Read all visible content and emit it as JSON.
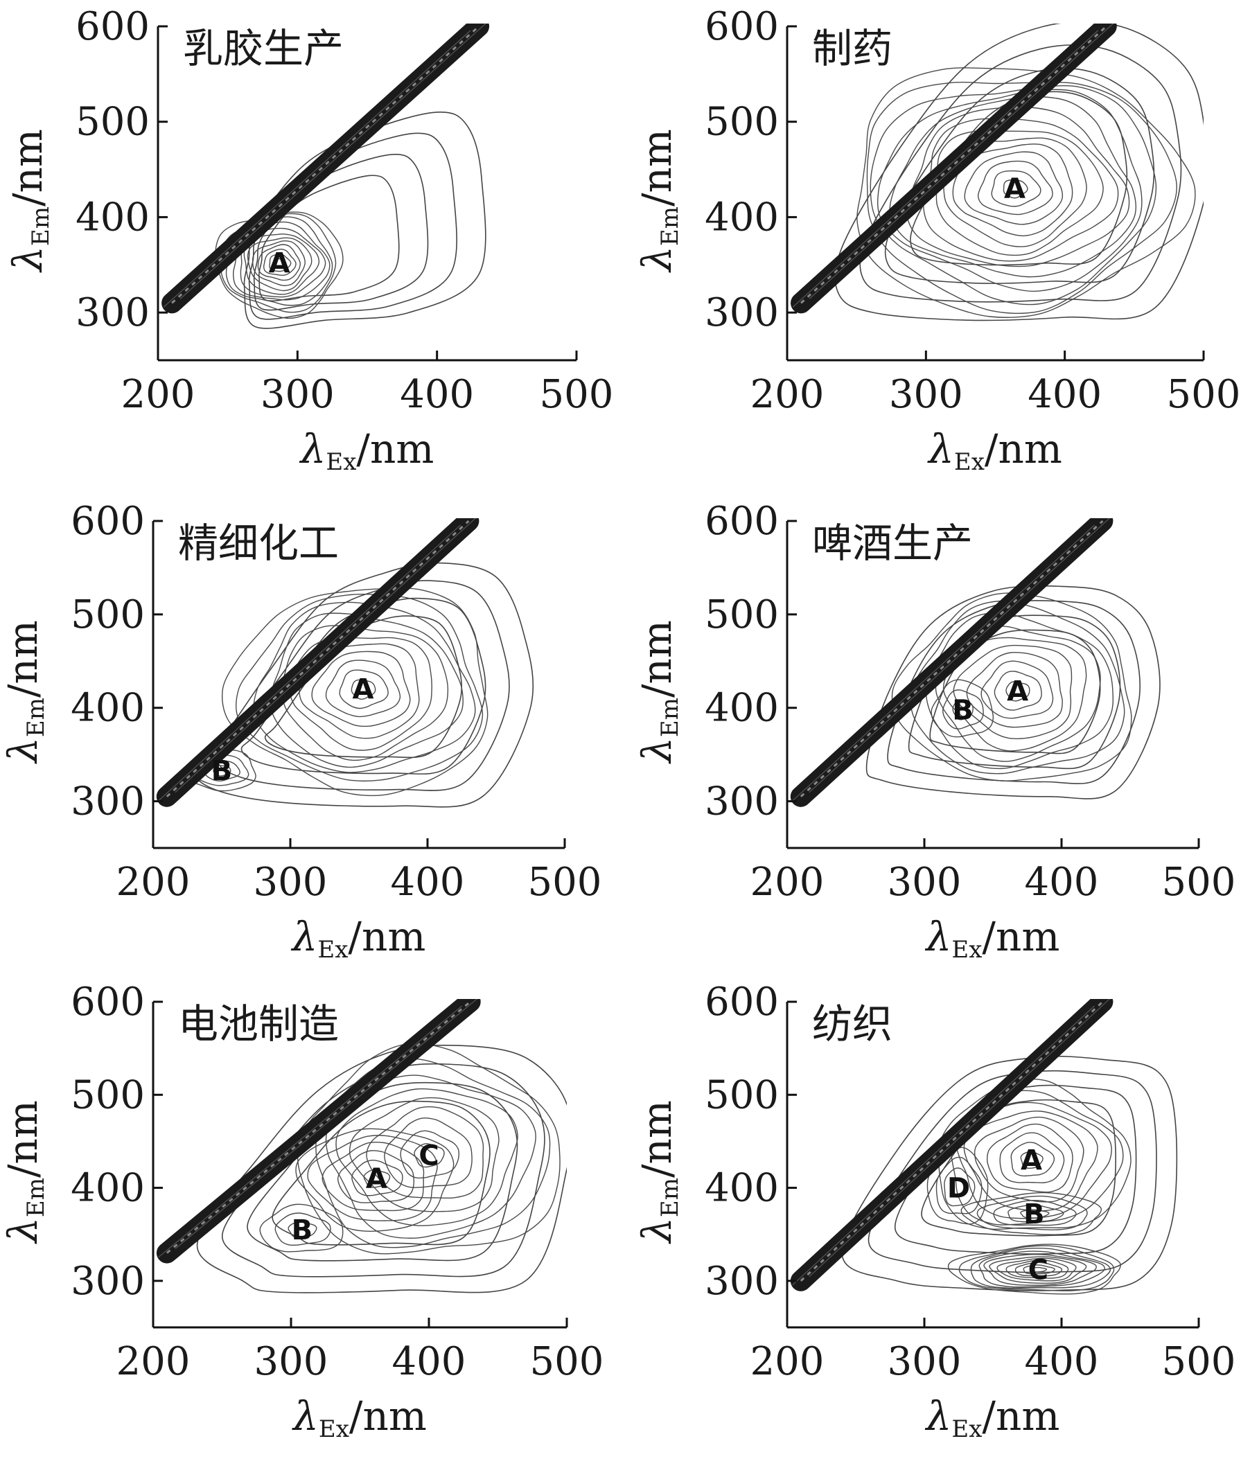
{
  "chart_data": [
    {
      "type": "contour",
      "title": "乳胶生产",
      "xlabel": "λEx/nm",
      "xlabel_main": "λ",
      "xlabel_sub": "Ex",
      "xlabel_unit": "/nm",
      "ylabel": "λEm/nm",
      "ylabel_main": "λ",
      "ylabel_sub": "Em",
      "ylabel_unit": "/nm",
      "xlim": [
        200,
        500
      ],
      "ylim": [
        250,
        600
      ],
      "x_ticks": [
        200,
        300,
        400,
        500
      ],
      "y_ticks": [
        300,
        400,
        500,
        600
      ],
      "scatter_band": {
        "x": [
          210,
          430
        ],
        "y": [
          310,
          600
        ]
      },
      "outer_contour": [
        [
          265,
          355
        ],
        [
          262,
          325
        ],
        [
          270,
          285
        ],
        [
          320,
          292
        ],
        [
          380,
          300
        ],
        [
          430,
          340
        ],
        [
          432,
          440
        ],
        [
          422,
          495
        ],
        [
          400,
          510
        ],
        [
          350,
          490
        ],
        [
          305,
          455
        ],
        [
          270,
          390
        ]
      ],
      "peaks": [
        {
          "label": "A",
          "x": 287,
          "y": 352,
          "rings": 12,
          "rx": 45,
          "ry": 54
        }
      ]
    },
    {
      "type": "contour",
      "title": "制药",
      "xlabel": "λEx/nm",
      "xlabel_main": "λ",
      "xlabel_sub": "Ex",
      "xlabel_unit": "/nm",
      "ylabel": "λEm/nm",
      "ylabel_main": "λ",
      "ylabel_sub": "Em",
      "ylabel_unit": "/nm",
      "xlim": [
        200,
        500
      ],
      "ylim": [
        250,
        600
      ],
      "x_ticks": [
        200,
        300,
        400,
        500
      ],
      "y_ticks": [
        300,
        400,
        500,
        600
      ],
      "scatter_band": {
        "x": [
          210,
          430
        ],
        "y": [
          310,
          600
        ]
      },
      "outer_contour": [
        [
          240,
          370
        ],
        [
          237,
          320
        ],
        [
          262,
          300
        ],
        [
          330,
          292
        ],
        [
          400,
          295
        ],
        [
          465,
          305
        ],
        [
          500,
          415
        ],
        [
          500,
          500
        ],
        [
          485,
          560
        ],
        [
          440,
          600
        ],
        [
          385,
          600
        ],
        [
          330,
          560
        ],
        [
          280,
          470
        ]
      ],
      "peaks": [
        {
          "label": "A",
          "x": 364,
          "y": 430,
          "rings": 14,
          "rx": 120,
          "ry": 130
        }
      ]
    },
    {
      "type": "contour",
      "title": "精细化工",
      "xlabel": "λEx/nm",
      "xlabel_main": "λ",
      "xlabel_sub": "Ex",
      "xlabel_unit": "/nm",
      "ylabel": "λEm/nm",
      "ylabel_main": "λ",
      "ylabel_sub": "Em",
      "ylabel_unit": "/nm",
      "xlim": [
        200,
        500
      ],
      "ylim": [
        250,
        600
      ],
      "x_ticks": [
        200,
        300,
        400,
        500
      ],
      "y_ticks": [
        300,
        400,
        500,
        600
      ],
      "scatter_band": {
        "x": [
          210,
          430
        ],
        "y": [
          305,
          600
        ]
      },
      "outer_contour": [
        [
          230,
          330
        ],
        [
          250,
          310
        ],
        [
          300,
          298
        ],
        [
          380,
          295
        ],
        [
          440,
          305
        ],
        [
          475,
          400
        ],
        [
          470,
          480
        ],
        [
          450,
          540
        ],
        [
          410,
          555
        ],
        [
          370,
          545
        ],
        [
          325,
          515
        ],
        [
          285,
          440
        ],
        [
          245,
          355
        ]
      ],
      "peaks": [
        {
          "label": "A",
          "x": 353,
          "y": 420,
          "rings": 11,
          "rx": 95,
          "ry": 110
        },
        {
          "label": "B",
          "x": 250,
          "y": 333,
          "rings": 4,
          "rx": 25,
          "ry": 22
        }
      ]
    },
    {
      "type": "contour",
      "title": "啤酒生产",
      "xlabel": "λEx/nm",
      "xlabel_main": "λ",
      "xlabel_sub": "Ex",
      "xlabel_unit": "/nm",
      "ylabel": "λEm/nm",
      "ylabel_main": "λ",
      "ylabel_sub": "Em",
      "ylabel_unit": "/nm",
      "xlim": [
        200,
        500
      ],
      "ylim": [
        250,
        600
      ],
      "x_ticks": [
        200,
        300,
        400,
        500
      ],
      "y_ticks": [
        300,
        400,
        500,
        600
      ],
      "scatter_band": {
        "x": [
          210,
          430
        ],
        "y": [
          305,
          600
        ]
      },
      "outer_contour": [
        [
          258,
          340
        ],
        [
          270,
          322
        ],
        [
          320,
          310
        ],
        [
          390,
          305
        ],
        [
          440,
          312
        ],
        [
          470,
          400
        ],
        [
          465,
          480
        ],
        [
          440,
          520
        ],
        [
          400,
          530
        ],
        [
          350,
          525
        ],
        [
          305,
          490
        ],
        [
          275,
          420
        ]
      ],
      "peaks": [
        {
          "label": "A",
          "x": 368,
          "y": 418,
          "rings": 10,
          "rx": 85,
          "ry": 100
        },
        {
          "label": "B",
          "x": 328,
          "y": 398,
          "rings": 3,
          "rx": 22,
          "ry": 30
        }
      ]
    },
    {
      "type": "contour",
      "title": "电池制造",
      "xlabel": "λEx/nm",
      "xlabel_main": "λ",
      "xlabel_sub": "Ex",
      "xlabel_unit": "/nm",
      "ylabel": "λEm/nm",
      "ylabel_main": "λ",
      "ylabel_sub": "Em",
      "ylabel_unit": "/nm",
      "xlim": [
        200,
        500
      ],
      "ylim": [
        250,
        600
      ],
      "x_ticks": [
        200,
        300,
        400,
        500
      ],
      "y_ticks": [
        300,
        400,
        500,
        600
      ],
      "scatter_band": {
        "x": [
          210,
          430
        ],
        "y": [
          330,
          600
        ]
      },
      "outer_contour": [
        [
          232,
          340
        ],
        [
          265,
          300
        ],
        [
          290,
          288
        ],
        [
          380,
          290
        ],
        [
          470,
          300
        ],
        [
          500,
          420
        ],
        [
          500,
          490
        ],
        [
          470,
          540
        ],
        [
          420,
          553
        ],
        [
          370,
          545
        ],
        [
          320,
          505
        ],
        [
          275,
          430
        ]
      ],
      "peaks": [
        {
          "label": "A",
          "x": 362,
          "y": 410,
          "rings": 6,
          "rx": 55,
          "ry": 55
        },
        {
          "label": "C",
          "x": 400,
          "y": 435,
          "rings": 9,
          "rx": 95,
          "ry": 110
        },
        {
          "label": "B",
          "x": 308,
          "y": 355,
          "rings": 3,
          "rx": 30,
          "ry": 25
        }
      ]
    },
    {
      "type": "contour",
      "title": "纺织",
      "xlabel": "λEx/nm",
      "xlabel_main": "λ",
      "xlabel_sub": "Ex",
      "xlabel_unit": "/nm",
      "ylabel": "λEm/nm",
      "ylabel_main": "λ",
      "ylabel_sub": "Em",
      "ylabel_unit": "/nm",
      "xlim": [
        200,
        500
      ],
      "ylim": [
        250,
        600
      ],
      "x_ticks": [
        200,
        300,
        400,
        500
      ],
      "y_ticks": [
        300,
        400,
        500,
        600
      ],
      "scatter_band": {
        "x": [
          210,
          430
        ],
        "y": [
          300,
          600
        ]
      },
      "outer_contour": [
        [
          240,
          330
        ],
        [
          280,
          300
        ],
        [
          330,
          292
        ],
        [
          400,
          290
        ],
        [
          455,
          300
        ],
        [
          480,
          360
        ],
        [
          483,
          470
        ],
        [
          470,
          525
        ],
        [
          430,
          538
        ],
        [
          380,
          540
        ],
        [
          330,
          520
        ],
        [
          280,
          440
        ]
      ],
      "peaks": [
        {
          "label": "A",
          "x": 378,
          "y": 430,
          "rings": 9,
          "rx": 70,
          "ry": 80
        },
        {
          "label": "D",
          "x": 325,
          "y": 400,
          "rings": 4,
          "rx": 22,
          "ry": 40
        },
        {
          "label": "B",
          "x": 380,
          "y": 372,
          "rings": 5,
          "rx": 50,
          "ry": 22
        },
        {
          "label": "C",
          "x": 383,
          "y": 312,
          "rings": 11,
          "rx": 62,
          "ry": 26
        }
      ]
    }
  ]
}
